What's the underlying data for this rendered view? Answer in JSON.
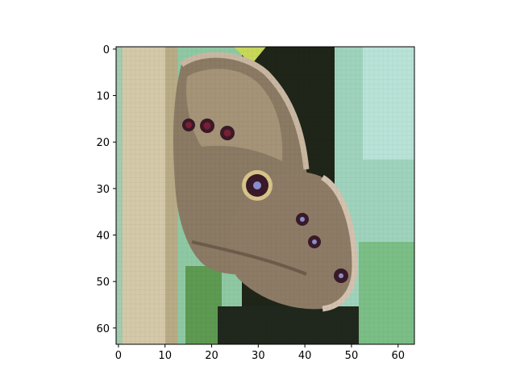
{
  "chart_data": {
    "type": "heatmap",
    "description_kind": "image shown with matplotlib imshow",
    "image_size": [
      64,
      64
    ],
    "xlim": [
      -0.5,
      63.5
    ],
    "ylim": [
      63.5,
      -0.5
    ],
    "x_ticks": [
      0,
      10,
      20,
      30,
      40,
      50,
      60
    ],
    "y_ticks": [
      0,
      10,
      20,
      30,
      40,
      50,
      60
    ],
    "x_tick_labels": [
      "0",
      "10",
      "20",
      "30",
      "40",
      "50",
      "60"
    ],
    "y_tick_labels": [
      "0",
      "10",
      "20",
      "30",
      "40",
      "50",
      "60"
    ],
    "title": "",
    "xlabel": "",
    "ylabel": "",
    "grid": false
  },
  "colors": {
    "axes_frame": "#000000",
    "stem": "#d4c9a8",
    "stem_shadow": "#b8ab86",
    "leaf_green": "#8fc9a4",
    "leaf_light": "#b6e0cf",
    "dark_background": "#1d2219",
    "wing_brown": "#8b7a64",
    "wing_light": "#c9b7a2",
    "eyespot_dark": "#3a1a28",
    "eyespot_red": "#7a2033",
    "eyespot_ring": "#d8c58b",
    "highlight_yellow": "#c8d95a"
  }
}
